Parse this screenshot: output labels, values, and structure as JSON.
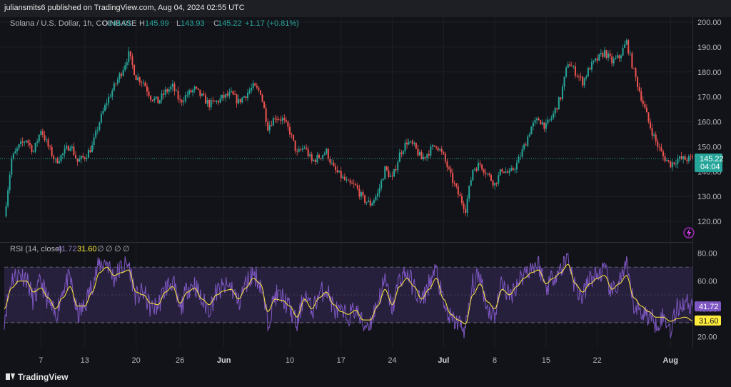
{
  "publisher_line": "juliansmits6 published on TradingView.com, Aug 04, 2024 02:55 UTC",
  "footer_brand": "TradingView",
  "price_pane": {
    "symbol_label": "Solana / U.S. Dollar, 1h, COINBASE",
    "ohlc": [
      {
        "key": "O",
        "value": "144.01"
      },
      {
        "key": "H",
        "value": "145.99"
      },
      {
        "key": "L",
        "value": "143.93"
      },
      {
        "key": "C",
        "value": "145.22"
      }
    ],
    "change": "+1.17 (+0.81%)",
    "last_price": "145.22",
    "countdown": "04:04"
  },
  "rsi_pane": {
    "label": "RSI (14, close)",
    "rsi_value": "41.72",
    "ma_value": "31.60",
    "hidden_inputs": [
      "∅",
      "∅",
      "∅",
      "∅"
    ]
  },
  "colors": {
    "background": "#121318",
    "up": "#26a69a",
    "down": "#ef5350",
    "rsi_line": "#7e57c2",
    "rsi_ma": "#ffeb3b",
    "rsi_band": "#2a2240"
  },
  "chart_data": [
    {
      "type": "candlestick",
      "title": "Solana / U.S. Dollar, 1h, COINBASE",
      "ylim": [
        112,
        202
      ],
      "y_ticks": [
        120,
        130,
        140,
        150,
        160,
        170,
        180,
        190,
        200
      ],
      "y_tick_labels": [
        "120.00",
        "130.00",
        "140.00",
        "150.00",
        "160.00",
        "170.00",
        "180.00",
        "190.00",
        "200.00"
      ],
      "x_labels": [
        "7",
        "13",
        "20",
        "26",
        "Jun",
        "10",
        "17",
        "24",
        "Jul",
        "8",
        "15",
        "22",
        "Aug"
      ],
      "x_label_days": [
        7,
        13,
        20,
        26,
        32,
        41,
        48,
        55,
        62,
        69,
        76,
        83,
        93
      ],
      "x_range_days": [
        2,
        96
      ],
      "last_close": 145.22,
      "series": [
        {
          "name": "",
          "x_days": [
            2,
            3,
            4,
            5,
            6,
            7,
            8,
            9,
            10,
            11,
            12,
            13,
            14,
            15,
            16,
            17,
            18,
            19,
            20,
            21,
            22,
            23,
            24,
            25,
            26,
            27,
            28,
            29,
            30,
            31,
            32,
            33,
            34,
            35,
            36,
            37,
            38,
            39,
            40,
            41,
            42,
            43,
            44,
            45,
            46,
            47,
            48,
            49,
            50,
            51,
            52,
            53,
            54,
            55,
            56,
            57,
            58,
            59,
            60,
            61,
            62,
            63,
            64,
            65,
            66,
            67,
            68,
            69,
            70,
            71,
            72,
            73,
            74,
            75,
            76,
            77,
            78,
            79,
            80,
            81,
            82,
            83,
            84,
            85,
            86,
            87,
            88,
            89,
            90,
            91,
            92,
            93,
            94,
            95,
            96
          ],
          "close": [
            122,
            145,
            150,
            153,
            148,
            157,
            150,
            144,
            147,
            151,
            144,
            146,
            150,
            160,
            168,
            174,
            180,
            187,
            178,
            176,
            170,
            168,
            172,
            174,
            168,
            171,
            173,
            170,
            167,
            168,
            170,
            171,
            168,
            171,
            174,
            172,
            158,
            162,
            161,
            156,
            147,
            150,
            144,
            146,
            148,
            141,
            138,
            135,
            134,
            129,
            127,
            131,
            141,
            137,
            147,
            152,
            150,
            145,
            148,
            151,
            146,
            138,
            131,
            125,
            141,
            143,
            139,
            135,
            141,
            139,
            143,
            150,
            158,
            161,
            158,
            163,
            170,
            184,
            180,
            176,
            182,
            185,
            188,
            184,
            186,
            192,
            180,
            170,
            160,
            152,
            146,
            143,
            145,
            145,
            145.22
          ]
        }
      ]
    },
    {
      "type": "line",
      "title": "RSI (14, close)",
      "ylim": [
        12,
        87
      ],
      "y_ticks": [
        20,
        40,
        60,
        80
      ],
      "y_tick_labels": [
        "20.00",
        "40.00",
        "60.00",
        "80.00"
      ],
      "bands": [
        30,
        50,
        70
      ],
      "x_range_days": [
        2,
        96
      ],
      "series": [
        {
          "name": "RSI",
          "x_days": [
            2,
            3,
            4,
            5,
            6,
            7,
            8,
            9,
            10,
            11,
            12,
            13,
            14,
            15,
            16,
            17,
            18,
            19,
            20,
            21,
            22,
            23,
            24,
            25,
            26,
            27,
            28,
            29,
            30,
            31,
            32,
            33,
            34,
            35,
            36,
            37,
            38,
            39,
            40,
            41,
            42,
            43,
            44,
            45,
            46,
            47,
            48,
            49,
            50,
            51,
            52,
            53,
            54,
            55,
            56,
            57,
            58,
            59,
            60,
            61,
            62,
            63,
            64,
            65,
            66,
            67,
            68,
            69,
            70,
            71,
            72,
            73,
            74,
            75,
            76,
            77,
            78,
            79,
            80,
            81,
            82,
            83,
            84,
            85,
            86,
            87,
            88,
            89,
            90,
            91,
            92,
            93,
            94,
            95,
            96
          ],
          "values": [
            33,
            62,
            65,
            63,
            45,
            60,
            45,
            34,
            55,
            62,
            35,
            42,
            58,
            72,
            74,
            62,
            70,
            72,
            48,
            52,
            40,
            42,
            55,
            60,
            38,
            55,
            58,
            45,
            40,
            52,
            55,
            56,
            44,
            58,
            66,
            58,
            30,
            50,
            48,
            40,
            28,
            52,
            38,
            50,
            55,
            40,
            36,
            35,
            40,
            28,
            30,
            45,
            60,
            40,
            62,
            66,
            55,
            44,
            58,
            68,
            42,
            32,
            30,
            25,
            58,
            64,
            40,
            36,
            60,
            48,
            58,
            66,
            70,
            72,
            55,
            64,
            68,
            78,
            55,
            48,
            62,
            64,
            68,
            50,
            60,
            70,
            42,
            38,
            35,
            30,
            34,
            26,
            41.72,
            45,
            41.72
          ]
        },
        {
          "name": "RSI-based MA",
          "x_days": [
            2,
            3,
            4,
            5,
            6,
            7,
            8,
            9,
            10,
            11,
            12,
            13,
            14,
            15,
            16,
            17,
            18,
            19,
            20,
            21,
            22,
            23,
            24,
            25,
            26,
            27,
            28,
            29,
            30,
            31,
            32,
            33,
            34,
            35,
            36,
            37,
            38,
            39,
            40,
            41,
            42,
            43,
            44,
            45,
            46,
            47,
            48,
            49,
            50,
            51,
            52,
            53,
            54,
            55,
            56,
            57,
            58,
            59,
            60,
            61,
            62,
            63,
            64,
            65,
            66,
            67,
            68,
            69,
            70,
            71,
            72,
            73,
            74,
            75,
            76,
            77,
            78,
            79,
            80,
            81,
            82,
            83,
            84,
            85,
            86,
            87,
            88,
            89,
            90,
            91,
            92,
            93,
            94,
            95,
            96
          ],
          "values": [
            40,
            55,
            60,
            60,
            52,
            55,
            48,
            40,
            48,
            56,
            42,
            42,
            52,
            66,
            70,
            64,
            66,
            68,
            52,
            50,
            44,
            43,
            52,
            56,
            44,
            52,
            55,
            47,
            43,
            50,
            53,
            54,
            47,
            55,
            62,
            58,
            38,
            47,
            46,
            42,
            34,
            47,
            40,
            48,
            52,
            43,
            38,
            36,
            39,
            32,
            32,
            42,
            54,
            43,
            56,
            62,
            56,
            47,
            54,
            62,
            47,
            36,
            32,
            29,
            50,
            58,
            45,
            40,
            54,
            50,
            56,
            62,
            66,
            68,
            58,
            62,
            66,
            72,
            58,
            52,
            58,
            62,
            64,
            54,
            58,
            64,
            48,
            42,
            38,
            34,
            34,
            31,
            33,
            34,
            31.6
          ]
        }
      ]
    }
  ]
}
